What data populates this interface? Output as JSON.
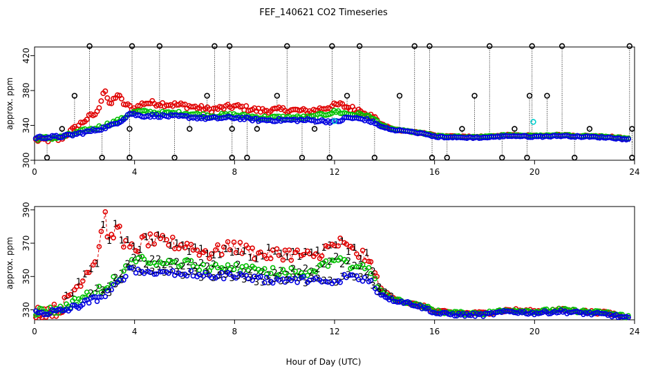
{
  "title": "FEF_140621  CO2 Timeseries",
  "xlabel": "Hour of Day (UTC)",
  "colors": {
    "series1": "#e00000",
    "series2": "#00c000",
    "series3": "#0000e0",
    "aux": "#00d0d0",
    "flag": "#000000"
  },
  "chart_data": [
    {
      "type": "scatter",
      "panel": "top",
      "ylabel": "approx. ppm",
      "xlim": [
        0,
        24
      ],
      "ylim": [
        300,
        430
      ],
      "xticks": [
        0,
        4,
        8,
        12,
        16,
        20,
        24
      ],
      "yticks": [
        300,
        340,
        380,
        420
      ],
      "flag_high": 431,
      "flag_low": 303,
      "spikes": [
        {
          "x": 2.2,
          "y": 431
        },
        {
          "x": 3.9,
          "y": 431
        },
        {
          "x": 5.0,
          "y": 431
        },
        {
          "x": 7.2,
          "y": 431
        },
        {
          "x": 7.8,
          "y": 431
        },
        {
          "x": 10.1,
          "y": 431
        },
        {
          "x": 11.9,
          "y": 431
        },
        {
          "x": 13.0,
          "y": 431
        },
        {
          "x": 15.2,
          "y": 431
        },
        {
          "x": 15.8,
          "y": 431
        },
        {
          "x": 18.2,
          "y": 431
        },
        {
          "x": 19.9,
          "y": 431
        },
        {
          "x": 21.1,
          "y": 431
        },
        {
          "x": 23.8,
          "y": 431
        },
        {
          "x": 1.6,
          "y": 374
        },
        {
          "x": 6.9,
          "y": 374
        },
        {
          "x": 9.7,
          "y": 374
        },
        {
          "x": 12.5,
          "y": 374
        },
        {
          "x": 14.6,
          "y": 374
        },
        {
          "x": 17.6,
          "y": 374
        },
        {
          "x": 19.8,
          "y": 374
        },
        {
          "x": 20.5,
          "y": 374
        },
        {
          "x": 0.5,
          "y": 303
        },
        {
          "x": 2.7,
          "y": 303
        },
        {
          "x": 3.8,
          "y": 303
        },
        {
          "x": 5.6,
          "y": 303
        },
        {
          "x": 7.9,
          "y": 303
        },
        {
          "x": 8.5,
          "y": 303
        },
        {
          "x": 10.7,
          "y": 303
        },
        {
          "x": 11.8,
          "y": 303
        },
        {
          "x": 13.6,
          "y": 303
        },
        {
          "x": 15.9,
          "y": 303
        },
        {
          "x": 16.5,
          "y": 303
        },
        {
          "x": 18.7,
          "y": 303
        },
        {
          "x": 19.7,
          "y": 303
        },
        {
          "x": 21.6,
          "y": 303
        },
        {
          "x": 23.9,
          "y": 303
        },
        {
          "x": 1.1,
          "y": 336
        },
        {
          "x": 3.8,
          "y": 336
        },
        {
          "x": 6.2,
          "y": 336
        },
        {
          "x": 7.9,
          "y": 336
        },
        {
          "x": 8.9,
          "y": 336
        },
        {
          "x": 11.2,
          "y": 336
        },
        {
          "x": 17.1,
          "y": 336
        },
        {
          "x": 19.2,
          "y": 336
        },
        {
          "x": 22.2,
          "y": 336
        },
        {
          "x": 23.9,
          "y": 336
        }
      ],
      "aux_points": [
        {
          "x": 12.0,
          "y": 345
        },
        {
          "x": 19.95,
          "y": 344
        }
      ]
    },
    {
      "type": "scatter",
      "panel": "bottom",
      "ylabel": "approx. ppm",
      "xlim": [
        0,
        24
      ],
      "ylim": [
        324,
        392
      ],
      "xticks": [
        0,
        4,
        8,
        12,
        16,
        20,
        24
      ],
      "yticks": [
        330,
        350,
        370,
        390
      ],
      "series": [
        {
          "name": "1",
          "anchors": [
            [
              0,
              329
            ],
            [
              1,
              330
            ],
            [
              1.4,
              338
            ],
            [
              1.8,
              347
            ],
            [
              2.2,
              356
            ],
            [
              2.5,
              360
            ],
            [
              2.8,
              389
            ],
            [
              3.0,
              368
            ],
            [
              3.3,
              382
            ],
            [
              3.6,
              370
            ],
            [
              4.0,
              365
            ],
            [
              4.4,
              372
            ],
            [
              5.0,
              371
            ],
            [
              6.0,
              369
            ],
            [
              7.0,
              364
            ],
            [
              8.0,
              368
            ],
            [
              9.0,
              363
            ],
            [
              10.0,
              364
            ],
            [
              11.0,
              362
            ],
            [
              12.2,
              370
            ],
            [
              12.6,
              366
            ],
            [
              13.2,
              362
            ],
            [
              13.5,
              356
            ],
            [
              13.8,
              343
            ],
            [
              14.3,
              337
            ],
            [
              15.0,
              334
            ],
            [
              15.8,
              331
            ],
            [
              16.0,
              329
            ],
            [
              17.0,
              328
            ],
            [
              18.0,
              328
            ],
            [
              19.0,
              330
            ],
            [
              20.0,
              329
            ],
            [
              21.0,
              330
            ],
            [
              22.0,
              329
            ],
            [
              23.0,
              328
            ],
            [
              23.7,
              326
            ]
          ]
        },
        {
          "name": "2",
          "anchors": [
            [
              0,
              329
            ],
            [
              1,
              330
            ],
            [
              1.5,
              334
            ],
            [
              2.0,
              338
            ],
            [
              2.5,
              341
            ],
            [
              3.0,
              346
            ],
            [
              3.5,
              351
            ],
            [
              3.8,
              358
            ],
            [
              4.2,
              360
            ],
            [
              5.0,
              358
            ],
            [
              6.0,
              358
            ],
            [
              7.0,
              355
            ],
            [
              8.0,
              356
            ],
            [
              9.0,
              353
            ],
            [
              10.0,
              353
            ],
            [
              11.0,
              353
            ],
            [
              12.1,
              360
            ],
            [
              12.5,
              357
            ],
            [
              13.2,
              356
            ],
            [
              13.5,
              352
            ],
            [
              13.8,
              342
            ],
            [
              14.3,
              337
            ],
            [
              15.0,
              334
            ],
            [
              15.8,
              331
            ],
            [
              16.0,
              329
            ],
            [
              17.0,
              328
            ],
            [
              18.0,
              328
            ],
            [
              19.0,
              330
            ],
            [
              20.0,
              329
            ],
            [
              21.0,
              330
            ],
            [
              22.0,
              329
            ],
            [
              23.0,
              328
            ],
            [
              23.7,
              326
            ]
          ]
        },
        {
          "name": "3",
          "anchors": [
            [
              0,
              328
            ],
            [
              1,
              329
            ],
            [
              1.5,
              331
            ],
            [
              2.0,
              334
            ],
            [
              2.5,
              337
            ],
            [
              3.0,
              341
            ],
            [
              3.5,
              348
            ],
            [
              3.8,
              356
            ],
            [
              4.2,
              353
            ],
            [
              5.0,
              353
            ],
            [
              6.0,
              352
            ],
            [
              7.0,
              350
            ],
            [
              8.0,
              351
            ],
            [
              9.0,
              348
            ],
            [
              10.0,
              348
            ],
            [
              11.0,
              348
            ],
            [
              12.1,
              346
            ],
            [
              12.5,
              351
            ],
            [
              13.2,
              349
            ],
            [
              13.5,
              346
            ],
            [
              13.8,
              340
            ],
            [
              14.3,
              336
            ],
            [
              15.0,
              334
            ],
            [
              15.8,
              330
            ],
            [
              16.0,
              328
            ],
            [
              17.0,
              327
            ],
            [
              18.0,
              327
            ],
            [
              19.0,
              329
            ],
            [
              20.0,
              328
            ],
            [
              21.0,
              329
            ],
            [
              22.0,
              328
            ],
            [
              23.0,
              327
            ],
            [
              23.7,
              325
            ]
          ]
        }
      ]
    }
  ]
}
